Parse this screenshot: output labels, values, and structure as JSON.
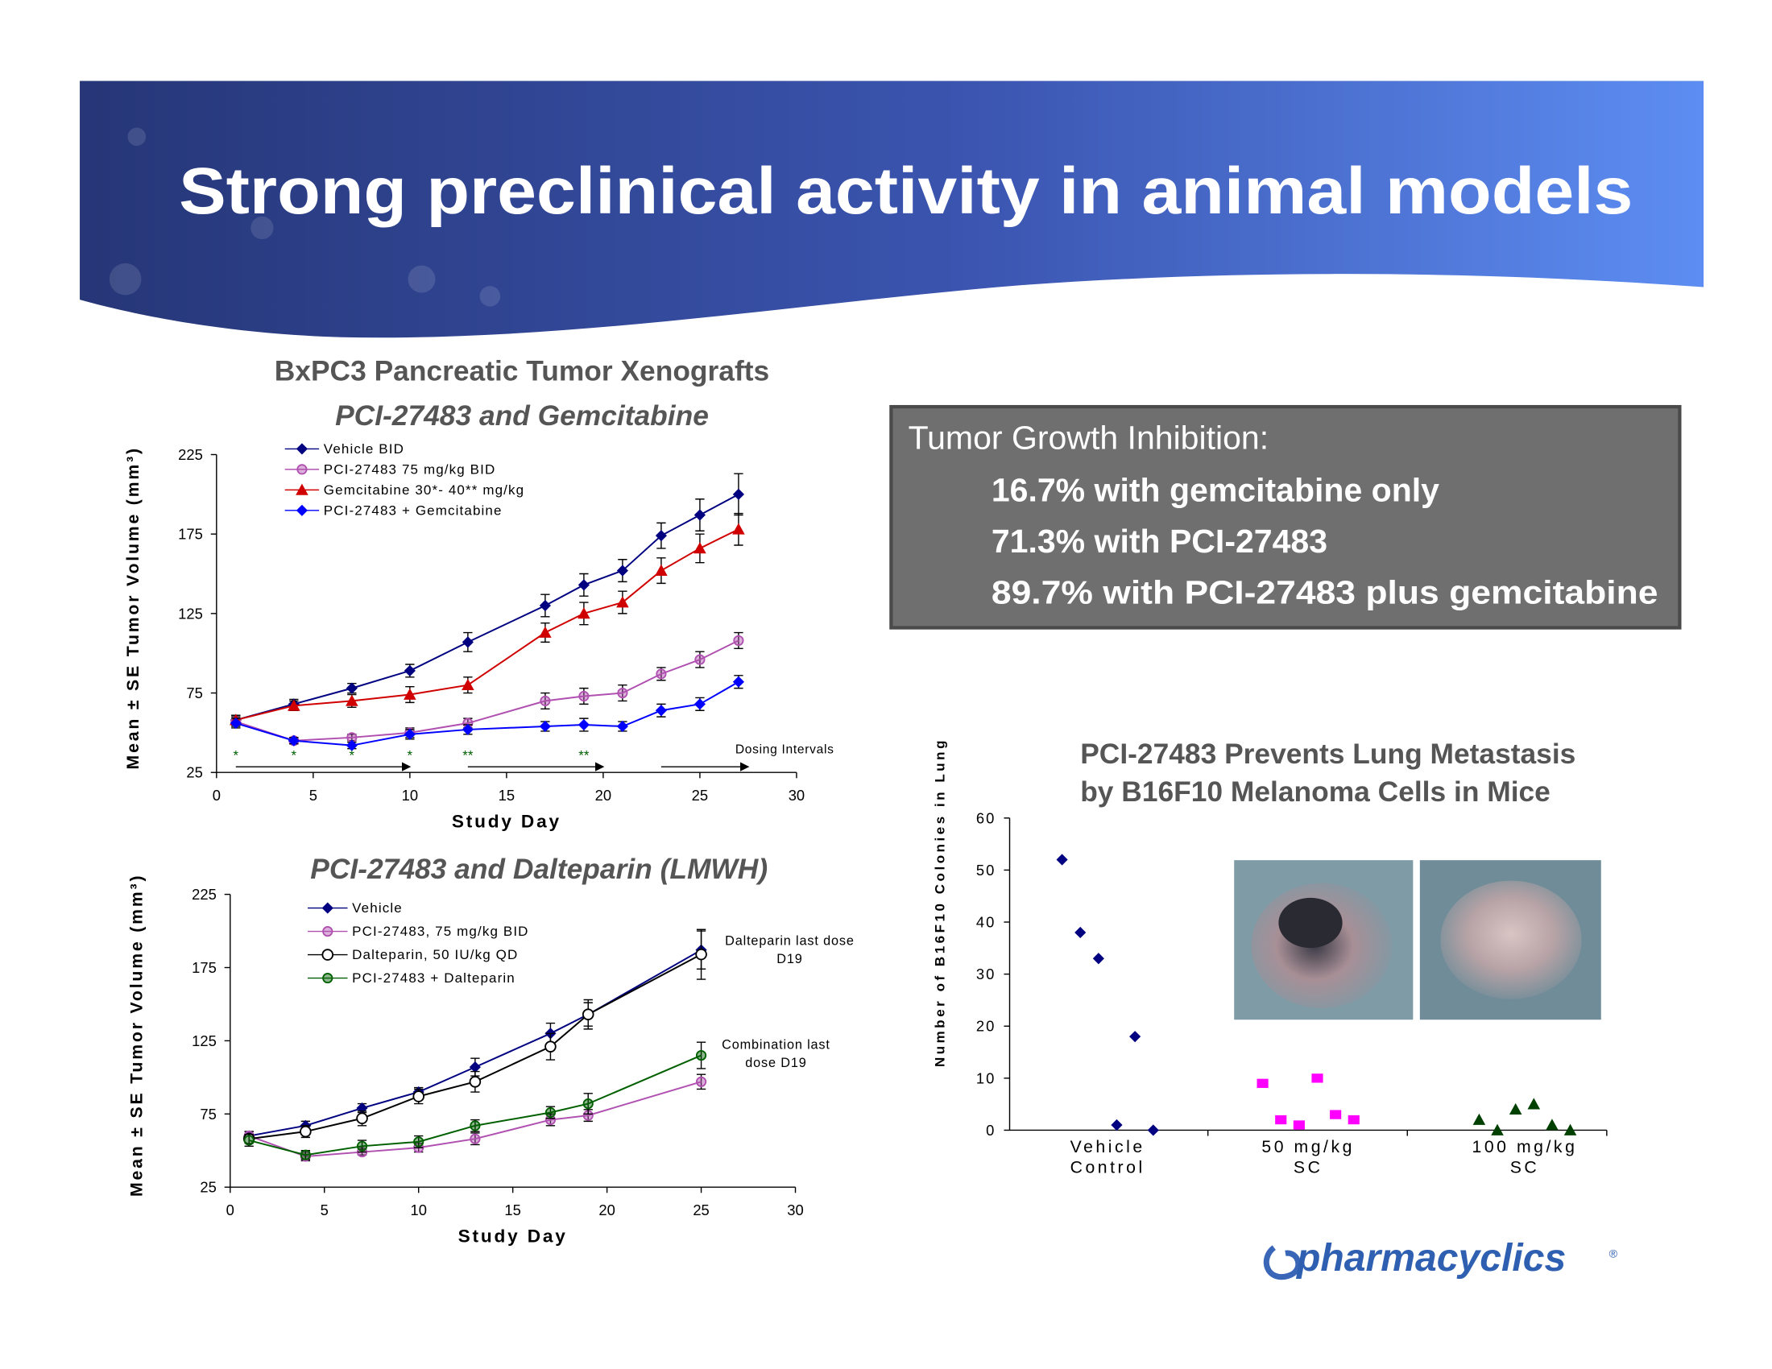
{
  "title": "Strong preclinical activity in animal models",
  "chart_data": [
    {
      "type": "line",
      "title": "BxPC3 Pancreatic Tumor Xenografts",
      "subtitle": "PCI-27483 and Gemcitabine",
      "x_label": "Study Day",
      "y_label": "Mean ± SE Tumor Volume (mm³)",
      "x": [
        1,
        4,
        7,
        10,
        13,
        17,
        19,
        21,
        23,
        25,
        27
      ],
      "xlim": [
        0,
        30
      ],
      "xticks": [
        0,
        5,
        10,
        15,
        20,
        25,
        30
      ],
      "ylim": [
        25,
        225
      ],
      "yticks": [
        25,
        75,
        125,
        175,
        225
      ],
      "series": [
        {
          "name": "Vehicle BID",
          "color": "#000080",
          "marker": "diamond",
          "values": [
            58,
            68,
            78,
            89,
            107,
            130,
            143,
            152,
            174,
            187,
            200
          ],
          "errors": [
            3,
            3,
            3,
            4,
            6,
            7,
            7,
            7,
            8,
            10,
            13
          ]
        },
        {
          "name": "PCI-27483 75 mg/kg BID",
          "color": "#b050b0",
          "marker": "circle",
          "values": [
            57,
            45,
            47,
            50,
            56,
            70,
            73,
            75,
            87,
            96,
            108
          ],
          "errors": [
            3,
            2,
            2,
            3,
            3,
            5,
            5,
            5,
            4,
            5,
            5
          ]
        },
        {
          "name": "Gemcitabine 30*- 40** mg/kg",
          "color": "#d00000",
          "marker": "triangle",
          "values": [
            58,
            67,
            70,
            74,
            80,
            113,
            125,
            132,
            152,
            166,
            178
          ],
          "errors": [
            3,
            3,
            4,
            5,
            5,
            6,
            7,
            7,
            8,
            9,
            10
          ]
        },
        {
          "name": "PCI-27483 + Gemcitabine",
          "color": "#0000ff",
          "marker": "diamond",
          "values": [
            56,
            45,
            42,
            49,
            52,
            54,
            55,
            54,
            64,
            68,
            82
          ],
          "errors": [
            3,
            2,
            2,
            3,
            3,
            3,
            4,
            3,
            4,
            4,
            4
          ]
        }
      ],
      "annotations": {
        "dosing_label": "Dosing Intervals",
        "dosing_intervals": [
          [
            1,
            10
          ],
          [
            13,
            20
          ],
          [
            23,
            27.5
          ]
        ],
        "significance": [
          {
            "x": 1,
            "label": "*"
          },
          {
            "x": 4,
            "label": "*"
          },
          {
            "x": 7,
            "label": "*"
          },
          {
            "x": 10,
            "label": "*"
          },
          {
            "x": 13,
            "label": "**"
          },
          {
            "x": 19,
            "label": "**"
          }
        ]
      }
    },
    {
      "type": "line",
      "title": "PCI-27483 and Dalteparin (LMWH)",
      "x_label": "Study Day",
      "y_label": "Mean ± SE Tumor Volume (mm³)",
      "x": [
        1,
        4,
        7,
        10,
        13,
        17,
        19,
        25
      ],
      "xlim": [
        0,
        30
      ],
      "xticks": [
        0,
        5,
        10,
        15,
        20,
        25,
        30
      ],
      "ylim": [
        25,
        225
      ],
      "yticks": [
        25,
        75,
        125,
        175,
        225
      ],
      "series": [
        {
          "name": "Vehicle",
          "color": "#000080",
          "marker": "diamond",
          "values": [
            60,
            67,
            79,
            90,
            107,
            130,
            143,
            187
          ],
          "errors": [
            3,
            3,
            3,
            3,
            6,
            7,
            8,
            13
          ]
        },
        {
          "name": "PCI-27483, 75 mg/kg BID",
          "color": "#b050b0",
          "marker": "circle",
          "values": [
            60,
            46,
            49,
            52,
            58,
            71,
            74,
            97
          ],
          "errors": [
            3,
            3,
            2,
            3,
            4,
            4,
            4,
            5
          ]
        },
        {
          "name": "Dalteparin, 50 IU/kg QD",
          "color": "#000000",
          "marker": "open-circle",
          "values": [
            58,
            63,
            72,
            87,
            97,
            121,
            143,
            184
          ],
          "errors": [
            3,
            4,
            5,
            5,
            7,
            9,
            10,
            17
          ]
        },
        {
          "name": "PCI-27483 + Dalteparin",
          "color": "#006000",
          "marker": "circle",
          "values": [
            57,
            47,
            53,
            56,
            67,
            76,
            82,
            115
          ],
          "errors": [
            4,
            3,
            4,
            4,
            4,
            4,
            7,
            9
          ]
        }
      ],
      "annotations": [
        [
          "Dalteparin last dose",
          "D19"
        ],
        [
          "Combination last",
          "dose D19"
        ]
      ]
    },
    {
      "type": "strip",
      "title": [
        "PCI-27483 Prevents Lung Metastasis",
        "by B16F10 Melanoma Cells in Mice"
      ],
      "y_label": "Number of B16F10 Colonies in Lung",
      "categories": [
        [
          "Vehicle",
          "Control"
        ],
        [
          "50 mg/kg",
          "SC"
        ],
        [
          "100 mg/kg",
          "SC"
        ]
      ],
      "ylim": [
        0,
        60
      ],
      "yticks": [
        0,
        10,
        20,
        30,
        40,
        50,
        60
      ],
      "series": [
        {
          "color": "#000080",
          "marker": "diamond",
          "values": [
            52,
            38,
            33,
            1,
            18,
            0
          ]
        },
        {
          "color": "#ff00ff",
          "marker": "square",
          "values": [
            9,
            2,
            1,
            10,
            3,
            2
          ]
        },
        {
          "color": "#004000",
          "marker": "triangle",
          "values": [
            2,
            0,
            4,
            5,
            1,
            0
          ]
        }
      ]
    }
  ],
  "text_box": {
    "heading": "Tumor Growth Inhibition:",
    "lines": [
      "16.7% with gemcitabine only",
      "71.3% with PCI-27483",
      "89.7% with PCI-27483 plus gemcitabine"
    ]
  },
  "logo": {
    "name": "pharmacyclics",
    "mark": "®"
  }
}
